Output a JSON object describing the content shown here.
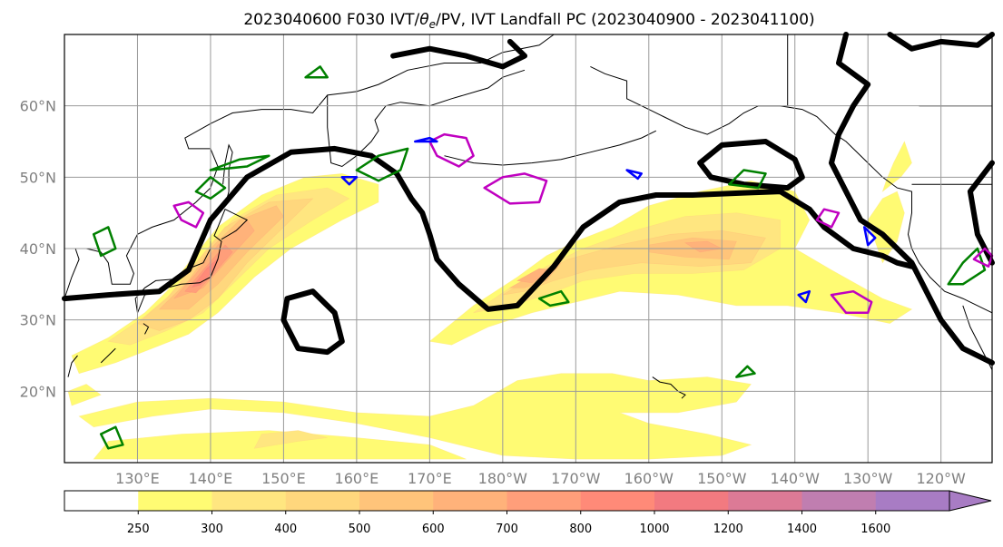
{
  "chart_data": {
    "type": "contour-map",
    "title": "2023040600 F030 IVT/θe/PV, IVT Landfall PC (2023040900 - 2023041100)",
    "title_parts": {
      "prefix": "2023040600 F030 IVT/",
      "theta": "θ",
      "theta_sub": "e",
      "suffix": "/PV, IVT Landfall PC (2023040900 - 2023041100)"
    },
    "xlabel": "",
    "ylabel": "",
    "x_ticks": [
      "130°E",
      "140°E",
      "150°E",
      "160°E",
      "170°E",
      "180°W",
      "170°W",
      "160°W",
      "150°W",
      "140°W",
      "130°W",
      "120°W"
    ],
    "y_ticks": [
      "20°N",
      "30°N",
      "40°N",
      "50°N",
      "60°N"
    ],
    "x_tick_values": [
      130,
      140,
      150,
      160,
      170,
      180,
      190,
      200,
      210,
      220,
      230,
      240
    ],
    "y_tick_values": [
      20,
      30,
      40,
      50,
      60
    ],
    "lon_range": [
      120,
      247
    ],
    "lat_range": [
      10,
      70
    ],
    "grid": true,
    "colorbar": {
      "orientation": "horizontal",
      "extend": "max",
      "levels": [
        250,
        300,
        400,
        500,
        600,
        700,
        800,
        1000,
        1200,
        1400,
        1600
      ],
      "colors": [
        "#ffffff",
        "#fffb73",
        "#ffe680",
        "#ffd77d",
        "#ffc47a",
        "#ffb27a",
        "#ff9e7a",
        "#ff8a78",
        "#f27a80",
        "#dc7a96",
        "#c07eb0",
        "#a87cc4"
      ]
    },
    "series_styles": {
      "pv_landfall_contour": {
        "color": "#000000"
      },
      "theta_e_contour": {
        "color": "#008000"
      },
      "pv_magenta_contour": {
        "color": "#c000c0"
      },
      "pv_blue_contour": {
        "color": "#0000ff"
      }
    }
  }
}
